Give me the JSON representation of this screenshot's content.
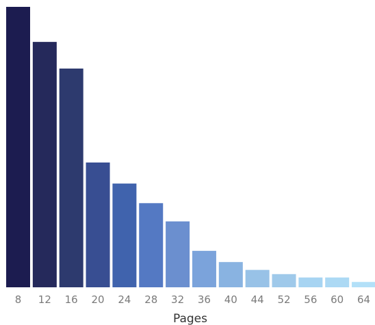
{
  "chart_data": {
    "type": "bar",
    "categories": [
      "8",
      "12",
      "16",
      "20",
      "24",
      "28",
      "32",
      "36",
      "40",
      "44",
      "52",
      "56",
      "60",
      "64"
    ],
    "values": [
      100,
      87.5,
      78,
      44.5,
      37,
      30,
      23.5,
      13,
      9,
      6.2,
      4.7,
      3.5,
      3.5,
      1.9
    ],
    "xlabel": "Pages",
    "ylabel": "",
    "ylim": [
      0,
      100
    ],
    "grid": false,
    "legend": "none",
    "colors": [
      "#1c1c50",
      "#25295b",
      "#2d3a6e",
      "#384e92",
      "#4063ad",
      "#5479c3",
      "#6b8fcf",
      "#7ba3db",
      "#89b3e1",
      "#98c2e7",
      "#9fc9ea",
      "#a7d4f2",
      "#acd9f4",
      "#b3e0f8"
    ]
  }
}
